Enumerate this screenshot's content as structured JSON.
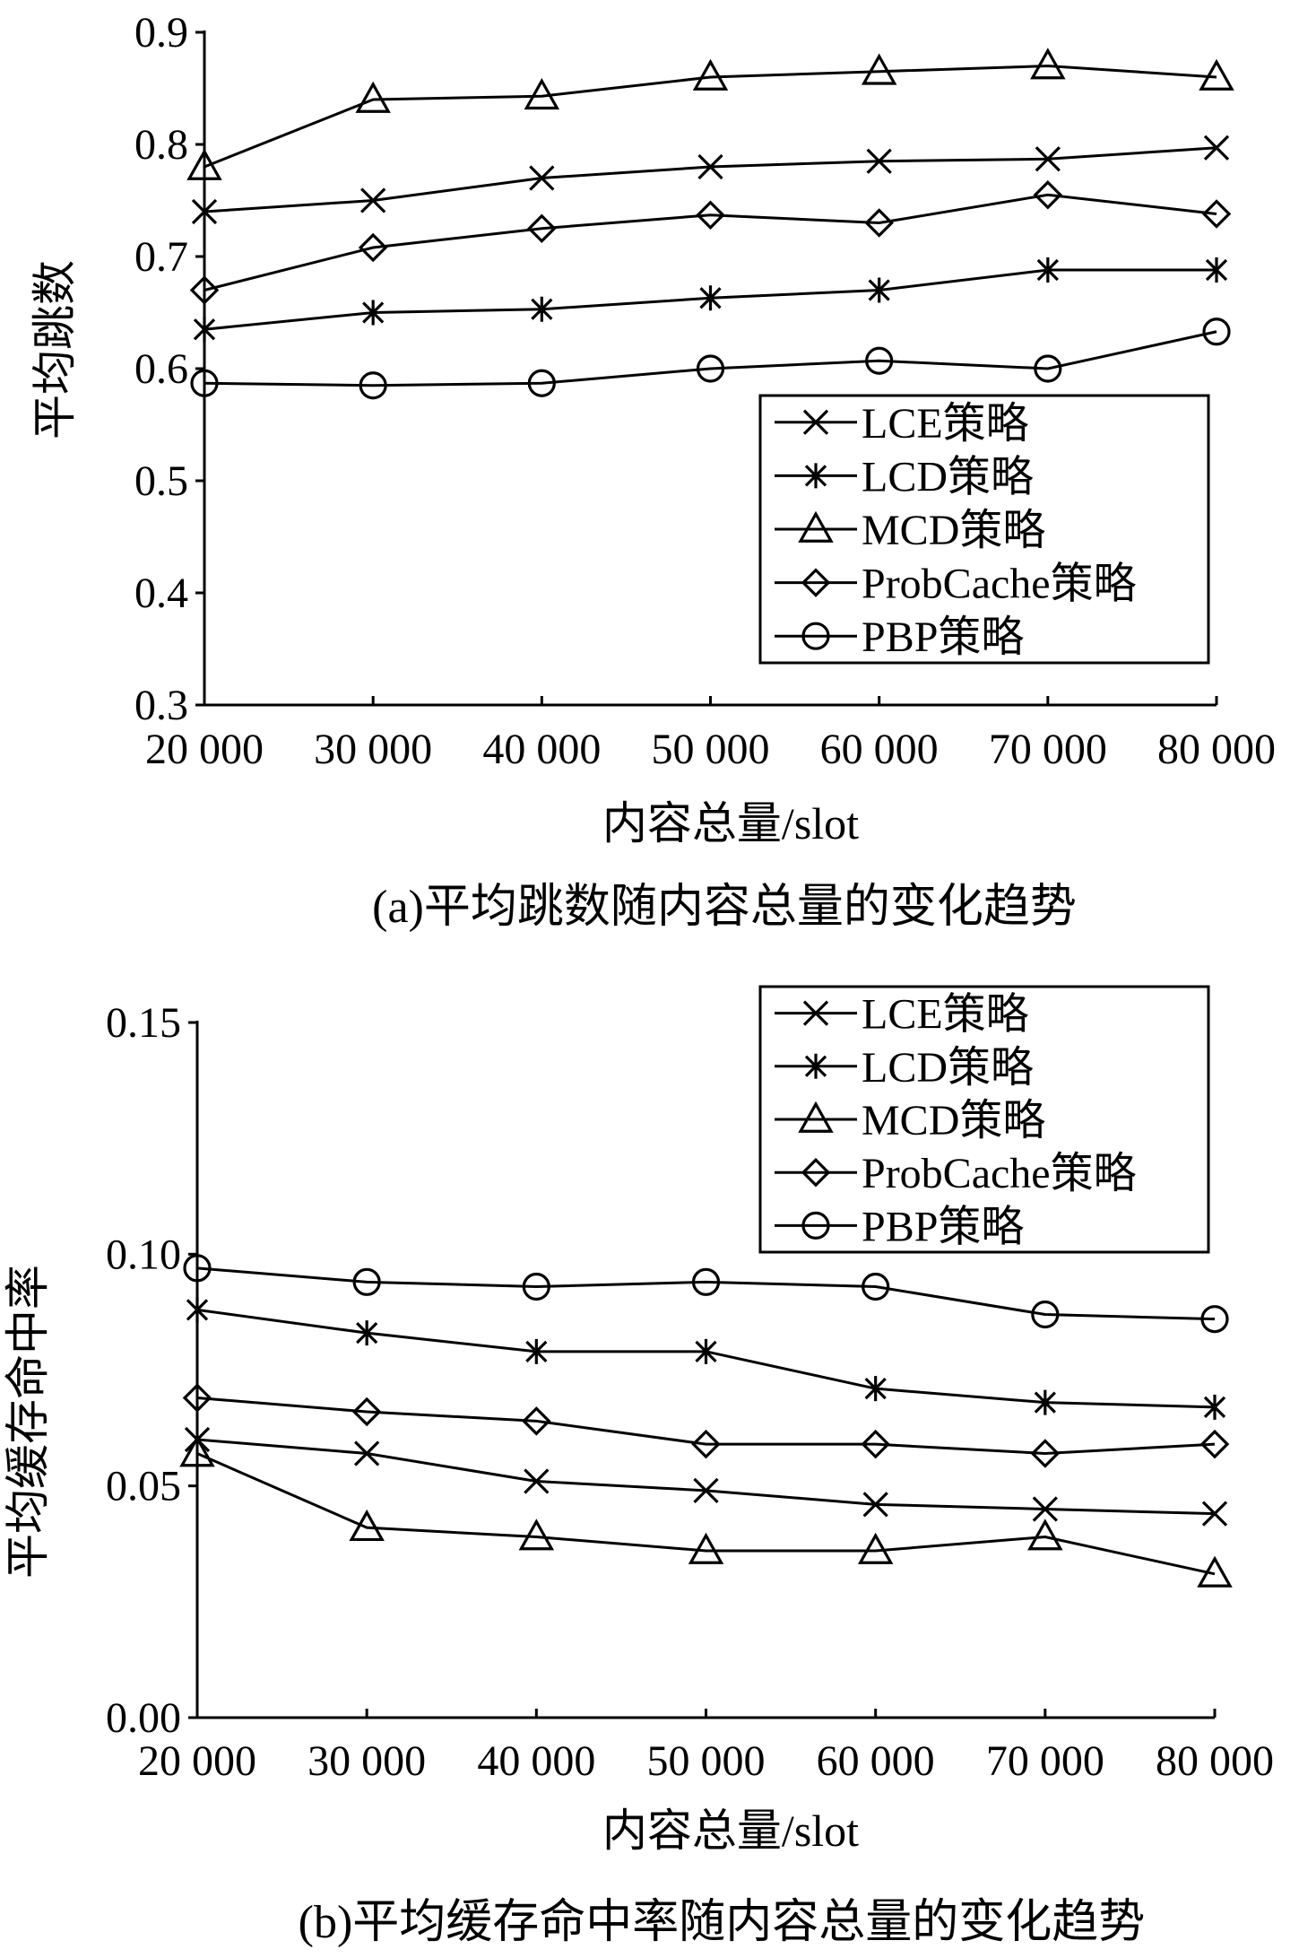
{
  "chart_data": [
    {
      "type": "line",
      "xlabel": "内容总量/slot",
      "ylabel": "平均跳数",
      "caption": "(a)平均跳数随内容总量的变化趋势",
      "x": [
        20000,
        30000,
        40000,
        50000,
        60000,
        70000,
        80000
      ],
      "x_tick_labels": [
        "20 000",
        "30 000",
        "40 000",
        "50 000",
        "60 000",
        "70 000",
        "80 000"
      ],
      "ylim": [
        0.3,
        0.9
      ],
      "y_ticks": [
        0.3,
        0.4,
        0.5,
        0.6,
        0.7,
        0.8,
        0.9
      ],
      "y_tick_labels": [
        "0.3",
        "0.4",
        "0.5",
        "0.6",
        "0.7",
        "0.8",
        "0.9"
      ],
      "legend_position": "lower-right",
      "series": [
        {
          "name": "LCE策略",
          "marker": "x",
          "values": [
            0.74,
            0.75,
            0.77,
            0.78,
            0.785,
            0.787,
            0.797
          ]
        },
        {
          "name": "LCD策略",
          "marker": "asterisk",
          "values": [
            0.635,
            0.65,
            0.653,
            0.663,
            0.67,
            0.688,
            0.688
          ]
        },
        {
          "name": "MCD策略",
          "marker": "triangle",
          "values": [
            0.78,
            0.84,
            0.843,
            0.86,
            0.865,
            0.87,
            0.86
          ]
        },
        {
          "name": "ProbCache策略",
          "marker": "diamond",
          "values": [
            0.67,
            0.708,
            0.725,
            0.737,
            0.73,
            0.755,
            0.738
          ]
        },
        {
          "name": "PBP策略",
          "marker": "circle",
          "values": [
            0.587,
            0.585,
            0.587,
            0.6,
            0.607,
            0.6,
            0.633
          ]
        }
      ]
    },
    {
      "type": "line",
      "xlabel": "内容总量/slot",
      "ylabel": "平均缓存命中率",
      "caption": "(b)平均缓存命中率随内容总量的变化趋势",
      "x": [
        20000,
        30000,
        40000,
        50000,
        60000,
        70000,
        80000
      ],
      "x_tick_labels": [
        "20 000",
        "30 000",
        "40 000",
        "50 000",
        "60 000",
        "70 000",
        "80 000"
      ],
      "ylim": [
        0.0,
        0.15
      ],
      "y_ticks": [
        0.0,
        0.05,
        0.1,
        0.15
      ],
      "y_tick_labels": [
        "0.00",
        "0.05",
        "0.10",
        "0.15"
      ],
      "legend_position": "top-right",
      "series": [
        {
          "name": "LCE策略",
          "marker": "x",
          "values": [
            0.06,
            0.057,
            0.051,
            0.049,
            0.046,
            0.045,
            0.044
          ]
        },
        {
          "name": "LCD策略",
          "marker": "asterisk",
          "values": [
            0.088,
            0.083,
            0.079,
            0.079,
            0.071,
            0.068,
            0.067
          ]
        },
        {
          "name": "MCD策略",
          "marker": "triangle",
          "values": [
            0.057,
            0.041,
            0.039,
            0.036,
            0.036,
            0.039,
            0.031
          ]
        },
        {
          "name": "ProbCache策略",
          "marker": "diamond",
          "values": [
            0.069,
            0.066,
            0.064,
            0.059,
            0.059,
            0.057,
            0.059
          ]
        },
        {
          "name": "PBP策略",
          "marker": "circle",
          "values": [
            0.097,
            0.094,
            0.093,
            0.094,
            0.093,
            0.087,
            0.086
          ]
        }
      ]
    }
  ]
}
